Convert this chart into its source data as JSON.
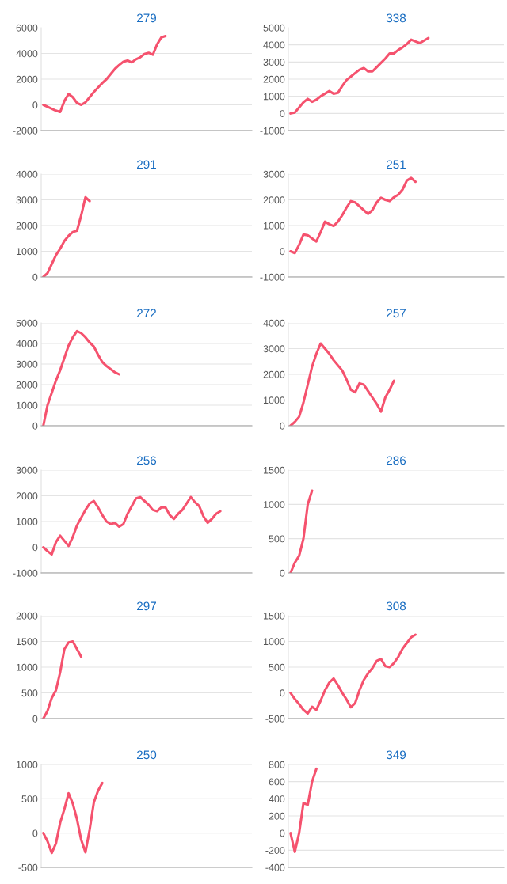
{
  "chart_data": [
    {
      "type": "line",
      "title": "279",
      "categories": [
        null,
        null,
        null,
        null,
        null,
        null,
        null,
        null,
        null,
        null,
        null,
        null,
        null,
        null,
        null,
        null,
        null,
        null,
        null,
        null,
        null,
        null,
        null,
        null,
        null,
        null,
        null,
        null,
        null,
        null,
        null,
        null,
        null,
        null,
        null,
        null,
        null,
        null,
        null,
        null,
        null,
        null,
        null,
        null,
        null,
        null,
        null,
        null,
        null,
        null
      ],
      "series": [
        {
          "color": "#f5526e",
          "values": [
            0,
            -150,
            -300,
            -450,
            -550,
            300,
            850,
            600,
            150,
            0,
            200,
            600,
            1000,
            1350,
            1700,
            2000,
            2400,
            2800,
            3100,
            3350,
            3450,
            3300,
            3550,
            3700,
            3950,
            4050,
            3900,
            4700,
            5250,
            5350,
            null,
            null,
            null,
            null,
            null,
            null,
            null,
            null,
            null,
            null,
            null,
            null,
            null,
            null,
            null,
            null,
            null,
            null,
            null,
            null
          ]
        }
      ],
      "ylim": [
        -2000,
        6000
      ],
      "yticks": [
        -2000,
        0,
        2000,
        4000,
        6000
      ],
      "grid": "y",
      "tick_labels": "y"
    },
    {
      "type": "line",
      "title": "338",
      "categories": [
        null,
        null,
        null,
        null,
        null,
        null,
        null,
        null,
        null,
        null,
        null,
        null,
        null,
        null,
        null,
        null,
        null,
        null,
        null,
        null,
        null,
        null,
        null,
        null,
        null,
        null,
        null,
        null,
        null,
        null,
        null,
        null,
        null,
        null,
        null,
        null,
        null,
        null,
        null,
        null,
        null,
        null,
        null,
        null,
        null,
        null,
        null,
        null,
        null,
        null
      ],
      "series": [
        {
          "color": "#f5526e",
          "values": [
            0,
            50,
            350,
            650,
            850,
            680,
            800,
            1000,
            1150,
            1300,
            1150,
            1200,
            1600,
            1950,
            2150,
            2350,
            2550,
            2650,
            2450,
            2450,
            2700,
            2950,
            3200,
            3500,
            3500,
            3700,
            3850,
            4050,
            4300,
            4200,
            4100,
            4250,
            4400,
            null,
            null,
            null,
            null,
            null,
            null,
            null,
            null,
            null,
            null,
            null,
            null,
            null,
            null,
            null,
            null,
            null
          ]
        }
      ],
      "ylim": [
        -1000,
        5000
      ],
      "yticks": [
        -1000,
        0,
        1000,
        2000,
        3000,
        4000,
        5000
      ],
      "grid": "y",
      "tick_labels": "y"
    },
    {
      "type": "line",
      "title": "291",
      "categories": [
        null,
        null,
        null,
        null,
        null,
        null,
        null,
        null,
        null,
        null,
        null,
        null,
        null,
        null,
        null,
        null,
        null,
        null,
        null,
        null,
        null,
        null,
        null,
        null,
        null,
        null,
        null,
        null,
        null,
        null,
        null,
        null,
        null,
        null,
        null,
        null,
        null,
        null,
        null,
        null,
        null,
        null,
        null,
        null,
        null,
        null,
        null,
        null,
        null,
        null
      ],
      "series": [
        {
          "color": "#f5526e",
          "values": [
            0,
            150,
            500,
            850,
            1100,
            1400,
            1600,
            1750,
            1800,
            2400,
            3100,
            2950,
            null,
            null,
            null,
            null,
            null,
            null,
            null,
            null,
            null,
            null,
            null,
            null,
            null,
            null,
            null,
            null,
            null,
            null,
            null,
            null,
            null,
            null,
            null,
            null,
            null,
            null,
            null,
            null,
            null,
            null,
            null,
            null,
            null,
            null,
            null,
            null,
            null,
            null
          ]
        }
      ],
      "ylim": [
        0,
        4000
      ],
      "yticks": [
        0,
        1000,
        2000,
        3000,
        4000
      ],
      "grid": "y",
      "tick_labels": "y"
    },
    {
      "type": "line",
      "title": "251",
      "categories": [
        null,
        null,
        null,
        null,
        null,
        null,
        null,
        null,
        null,
        null,
        null,
        null,
        null,
        null,
        null,
        null,
        null,
        null,
        null,
        null,
        null,
        null,
        null,
        null,
        null,
        null,
        null,
        null,
        null,
        null,
        null,
        null,
        null,
        null,
        null,
        null,
        null,
        null,
        null,
        null,
        null,
        null,
        null,
        null,
        null,
        null,
        null,
        null,
        null,
        null
      ],
      "series": [
        {
          "color": "#f5526e",
          "values": [
            0,
            -70,
            250,
            650,
            620,
            500,
            380,
            750,
            1150,
            1050,
            980,
            1150,
            1400,
            1700,
            1950,
            1900,
            1750,
            1600,
            1450,
            1600,
            1900,
            2080,
            2000,
            1950,
            2100,
            2200,
            2400,
            2750,
            2850,
            2700,
            null,
            null,
            null,
            null,
            null,
            null,
            null,
            null,
            null,
            null,
            null,
            null,
            null,
            null,
            null,
            null,
            null,
            null,
            null,
            null
          ]
        }
      ],
      "ylim": [
        -1000,
        3000
      ],
      "yticks": [
        -1000,
        0,
        1000,
        2000,
        3000
      ],
      "grid": "y",
      "tick_labels": "y"
    },
    {
      "type": "line",
      "title": "272",
      "categories": [
        null,
        null,
        null,
        null,
        null,
        null,
        null,
        null,
        null,
        null,
        null,
        null,
        null,
        null,
        null,
        null,
        null,
        null,
        null,
        null,
        null,
        null,
        null,
        null,
        null,
        null,
        null,
        null,
        null,
        null,
        null,
        null,
        null,
        null,
        null,
        null,
        null,
        null,
        null,
        null,
        null,
        null,
        null,
        null,
        null,
        null,
        null,
        null,
        null,
        null
      ],
      "series": [
        {
          "color": "#f5526e",
          "values": [
            0,
            1000,
            1600,
            2200,
            2700,
            3300,
            3900,
            4300,
            4600,
            4500,
            4300,
            4050,
            3850,
            3450,
            3100,
            2900,
            2750,
            2600,
            2500,
            null,
            null,
            null,
            null,
            null,
            null,
            null,
            null,
            null,
            null,
            null,
            null,
            null,
            null,
            null,
            null,
            null,
            null,
            null,
            null,
            null,
            null,
            null,
            null,
            null,
            null,
            null,
            null,
            null,
            null,
            null
          ]
        }
      ],
      "ylim": [
        0,
        5000
      ],
      "yticks": [
        0,
        1000,
        2000,
        3000,
        4000,
        5000
      ],
      "grid": "y",
      "tick_labels": "y"
    },
    {
      "type": "line",
      "title": "257",
      "categories": [
        null,
        null,
        null,
        null,
        null,
        null,
        null,
        null,
        null,
        null,
        null,
        null,
        null,
        null,
        null,
        null,
        null,
        null,
        null,
        null,
        null,
        null,
        null,
        null,
        null,
        null,
        null,
        null,
        null,
        null,
        null,
        null,
        null,
        null,
        null,
        null,
        null,
        null,
        null,
        null,
        null,
        null,
        null,
        null,
        null,
        null,
        null,
        null,
        null,
        null
      ],
      "series": [
        {
          "color": "#f5526e",
          "values": [
            0,
            150,
            350,
            900,
            1600,
            2300,
            2800,
            3200,
            3000,
            2800,
            2550,
            2350,
            2150,
            1800,
            1400,
            1300,
            1650,
            1600,
            1350,
            1100,
            850,
            550,
            1100,
            1400,
            1750,
            null,
            null,
            null,
            null,
            null,
            null,
            null,
            null,
            null,
            null,
            null,
            null,
            null,
            null,
            null,
            null,
            null,
            null,
            null,
            null,
            null,
            null,
            null,
            null,
            null
          ]
        }
      ],
      "ylim": [
        0,
        4000
      ],
      "yticks": [
        0,
        1000,
        2000,
        3000,
        4000
      ],
      "grid": "y",
      "tick_labels": "y"
    },
    {
      "type": "line",
      "title": "256",
      "categories": [
        null,
        null,
        null,
        null,
        null,
        null,
        null,
        null,
        null,
        null,
        null,
        null,
        null,
        null,
        null,
        null,
        null,
        null,
        null,
        null,
        null,
        null,
        null,
        null,
        null,
        null,
        null,
        null,
        null,
        null,
        null,
        null,
        null,
        null,
        null,
        null,
        null,
        null,
        null,
        null,
        null,
        null,
        null,
        null,
        null,
        null,
        null,
        null,
        null,
        null
      ],
      "series": [
        {
          "color": "#f5526e",
          "values": [
            0,
            -150,
            -280,
            200,
            450,
            250,
            50,
            400,
            850,
            1150,
            1450,
            1700,
            1800,
            1550,
            1250,
            1000,
            900,
            950,
            800,
            900,
            1300,
            1600,
            1900,
            1950,
            1800,
            1650,
            1450,
            1400,
            1550,
            1550,
            1250,
            1100,
            1300,
            1450,
            1700,
            1950,
            1750,
            1600,
            1200,
            950,
            1100,
            1300,
            1400,
            null,
            null,
            null,
            null,
            null,
            null,
            null
          ]
        }
      ],
      "ylim": [
        -1000,
        3000
      ],
      "yticks": [
        -1000,
        0,
        1000,
        2000,
        3000
      ],
      "grid": "y",
      "tick_labels": "y"
    },
    {
      "type": "line",
      "title": "286",
      "categories": [
        null,
        null,
        null,
        null,
        null,
        null,
        null,
        null,
        null,
        null,
        null,
        null,
        null,
        null,
        null,
        null,
        null,
        null,
        null,
        null,
        null,
        null,
        null,
        null,
        null,
        null,
        null,
        null,
        null,
        null,
        null,
        null,
        null,
        null,
        null,
        null,
        null,
        null,
        null,
        null,
        null,
        null,
        null,
        null,
        null,
        null,
        null,
        null,
        null,
        null
      ],
      "series": [
        {
          "color": "#f5526e",
          "values": [
            0,
            150,
            250,
            500,
            1000,
            1200,
            null,
            null,
            null,
            null,
            null,
            null,
            null,
            null,
            null,
            null,
            null,
            null,
            null,
            null,
            null,
            null,
            null,
            null,
            null,
            null,
            null,
            null,
            null,
            null,
            null,
            null,
            null,
            null,
            null,
            null,
            null,
            null,
            null,
            null,
            null,
            null,
            null,
            null,
            null,
            null,
            null,
            null,
            null,
            null
          ]
        }
      ],
      "ylim": [
        0,
        1500
      ],
      "yticks": [
        0,
        500,
        1000,
        1500
      ],
      "grid": "y",
      "tick_labels": "y"
    },
    {
      "type": "line",
      "title": "297",
      "categories": [
        null,
        null,
        null,
        null,
        null,
        null,
        null,
        null,
        null,
        null,
        null,
        null,
        null,
        null,
        null,
        null,
        null,
        null,
        null,
        null,
        null,
        null,
        null,
        null,
        null,
        null,
        null,
        null,
        null,
        null,
        null,
        null,
        null,
        null,
        null,
        null,
        null,
        null,
        null,
        null,
        null,
        null,
        null,
        null,
        null,
        null,
        null,
        null,
        null,
        null
      ],
      "series": [
        {
          "color": "#f5526e",
          "values": [
            0,
            150,
            400,
            550,
            900,
            1350,
            1480,
            1500,
            1350,
            1200,
            null,
            null,
            null,
            null,
            null,
            null,
            null,
            null,
            null,
            null,
            null,
            null,
            null,
            null,
            null,
            null,
            null,
            null,
            null,
            null,
            null,
            null,
            null,
            null,
            null,
            null,
            null,
            null,
            null,
            null,
            null,
            null,
            null,
            null,
            null,
            null,
            null,
            null,
            null,
            null
          ]
        }
      ],
      "ylim": [
        0,
        2000
      ],
      "yticks": [
        0,
        500,
        1000,
        1500,
        2000
      ],
      "grid": "y",
      "tick_labels": "y"
    },
    {
      "type": "line",
      "title": "308",
      "categories": [
        null,
        null,
        null,
        null,
        null,
        null,
        null,
        null,
        null,
        null,
        null,
        null,
        null,
        null,
        null,
        null,
        null,
        null,
        null,
        null,
        null,
        null,
        null,
        null,
        null,
        null,
        null,
        null,
        null,
        null,
        null,
        null,
        null,
        null,
        null,
        null,
        null,
        null,
        null,
        null,
        null,
        null,
        null,
        null,
        null,
        null,
        null,
        null,
        null,
        null
      ],
      "series": [
        {
          "color": "#f5526e",
          "values": [
            0,
            -120,
            -220,
            -330,
            -400,
            -270,
            -330,
            -150,
            50,
            200,
            280,
            150,
            0,
            -130,
            -280,
            -200,
            50,
            250,
            380,
            480,
            620,
            660,
            520,
            500,
            580,
            700,
            860,
            970,
            1080,
            1130,
            null,
            null,
            null,
            null,
            null,
            null,
            null,
            null,
            null,
            null,
            null,
            null,
            null,
            null,
            null,
            null,
            null,
            null,
            null,
            null
          ]
        }
      ],
      "ylim": [
        -500,
        1500
      ],
      "yticks": [
        -500,
        0,
        500,
        1000,
        1500
      ],
      "grid": "y",
      "tick_labels": "y"
    },
    {
      "type": "line",
      "title": "250",
      "categories": [
        null,
        null,
        null,
        null,
        null,
        null,
        null,
        null,
        null,
        null,
        null,
        null,
        null,
        null,
        null,
        null,
        null,
        null,
        null,
        null,
        null,
        null,
        null,
        null,
        null,
        null,
        null,
        null,
        null,
        null,
        null,
        null,
        null,
        null,
        null,
        null,
        null,
        null,
        null,
        null,
        null,
        null,
        null,
        null,
        null,
        null,
        null,
        null,
        null,
        null
      ],
      "series": [
        {
          "color": "#f5526e",
          "values": [
            0,
            -120,
            -290,
            -150,
            150,
            350,
            580,
            430,
            200,
            -100,
            -280,
            50,
            450,
            620,
            730,
            null,
            null,
            null,
            null,
            null,
            null,
            null,
            null,
            null,
            null,
            null,
            null,
            null,
            null,
            null,
            null,
            null,
            null,
            null,
            null,
            null,
            null,
            null,
            null,
            null,
            null,
            null,
            null,
            null,
            null,
            null,
            null,
            null,
            null,
            null
          ]
        }
      ],
      "ylim": [
        -500,
        1000
      ],
      "yticks": [
        -500,
        0,
        500,
        1000
      ],
      "grid": "y",
      "tick_labels": "y"
    },
    {
      "type": "line",
      "title": "349",
      "categories": [
        null,
        null,
        null,
        null,
        null,
        null,
        null,
        null,
        null,
        null,
        null,
        null,
        null,
        null,
        null,
        null,
        null,
        null,
        null,
        null,
        null,
        null,
        null,
        null,
        null,
        null,
        null,
        null,
        null,
        null,
        null,
        null,
        null,
        null,
        null,
        null,
        null,
        null,
        null,
        null,
        null,
        null,
        null,
        null,
        null,
        null,
        null,
        null,
        null,
        null
      ],
      "series": [
        {
          "color": "#f5526e",
          "values": [
            0,
            -220,
            0,
            350,
            330,
            600,
            750,
            null,
            null,
            null,
            null,
            null,
            null,
            null,
            null,
            null,
            null,
            null,
            null,
            null,
            null,
            null,
            null,
            null,
            null,
            null,
            null,
            null,
            null,
            null,
            null,
            null,
            null,
            null,
            null,
            null,
            null,
            null,
            null,
            null,
            null,
            null,
            null,
            null,
            null,
            null,
            null,
            null,
            null,
            null
          ]
        }
      ],
      "ylim": [
        -400,
        800
      ],
      "yticks": [
        -400,
        -200,
        0,
        200,
        400,
        600,
        800
      ],
      "grid": "y",
      "tick_labels": "y"
    }
  ]
}
